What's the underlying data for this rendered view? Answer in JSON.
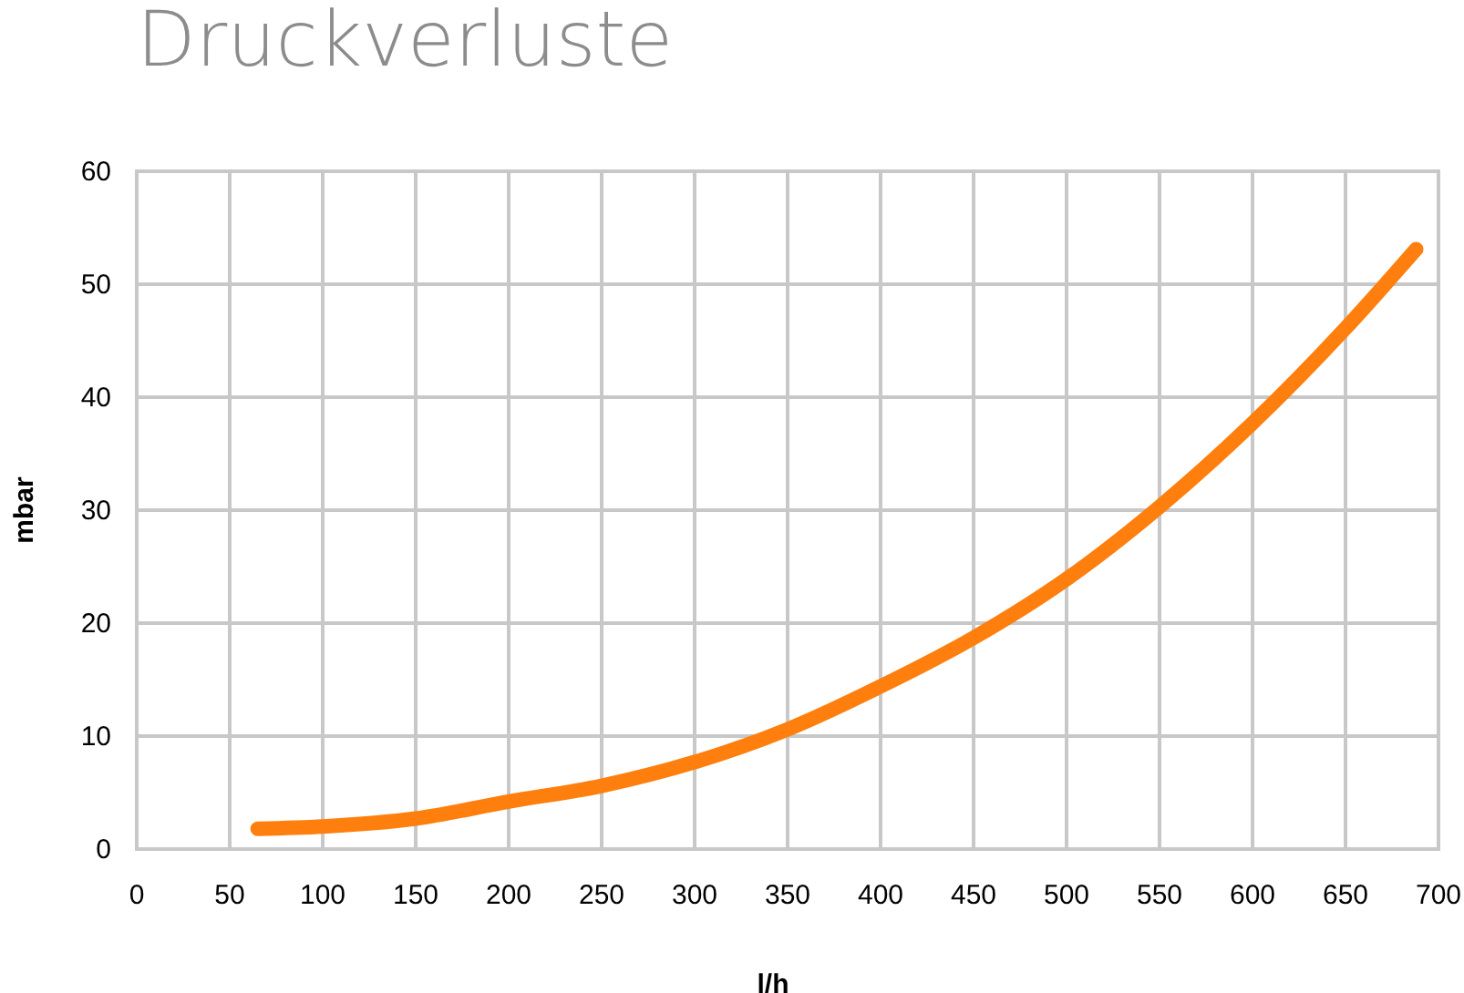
{
  "chart_data": {
    "type": "line",
    "title": "Druckverluste",
    "xlabel": "l/h",
    "ylabel": "mbar",
    "x": [
      65,
      100,
      150,
      200,
      250,
      300,
      350,
      400,
      450,
      500,
      550,
      600,
      650,
      688
    ],
    "series": [
      {
        "color": "#ff7f0e",
        "values": [
          1.8,
          2.0,
          2.7,
          4.2,
          5.6,
          7.7,
          10.6,
          14.4,
          18.7,
          23.9,
          30.3,
          37.7,
          46.1,
          53.1
        ]
      }
    ],
    "xlim": [
      0,
      700
    ],
    "xticks": [
      0,
      50,
      100,
      150,
      200,
      250,
      300,
      350,
      400,
      450,
      500,
      550,
      600,
      650,
      700
    ],
    "ylim": [
      0,
      60
    ],
    "yticks": [
      0,
      10,
      20,
      30,
      40,
      50,
      60
    ],
    "grid": true,
    "marker": "none",
    "line_style": "solid"
  }
}
